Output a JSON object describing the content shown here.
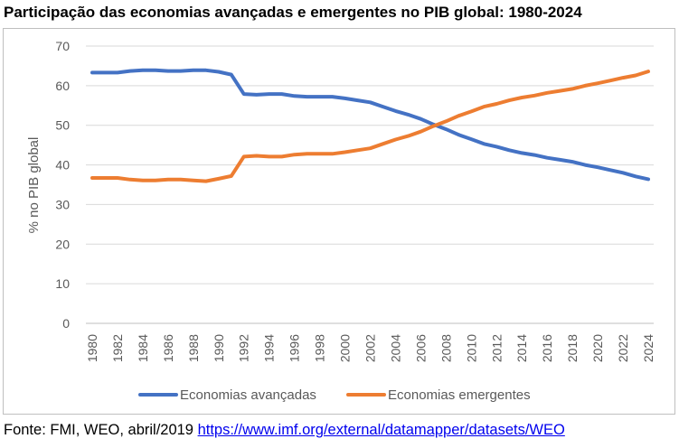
{
  "title": "Participação das economias avançadas e emergentes no PIB global: 1980-2024",
  "source": {
    "prefix": "Fonte: FMI, WEO, abril/2019 ",
    "link_text": "https://www.imf.org/external/datamapper/datasets/WEO"
  },
  "chart_data": {
    "type": "line",
    "title": "Participação das economias avançadas e emergentes no PIB global: 1980-2024",
    "xlabel": "",
    "ylabel": "% no PIB global",
    "ylim": [
      0,
      70
    ],
    "yticks": [
      "0",
      "10",
      "20",
      "30",
      "40",
      "50",
      "60",
      "70"
    ],
    "xticks": [
      "1980",
      "1982",
      "1984",
      "1986",
      "1988",
      "1990",
      "1992",
      "1994",
      "1996",
      "1998",
      "2000",
      "2002",
      "2004",
      "2006",
      "2008",
      "2010",
      "2012",
      "2014",
      "2016",
      "2018",
      "2020",
      "2022",
      "2024"
    ],
    "grid": "horizontal",
    "legend_position": "bottom",
    "x": [
      1980,
      1981,
      1982,
      1983,
      1984,
      1985,
      1986,
      1987,
      1988,
      1989,
      1990,
      1991,
      1992,
      1993,
      1994,
      1995,
      1996,
      1997,
      1998,
      1999,
      2000,
      2001,
      2002,
      2003,
      2004,
      2005,
      2006,
      2007,
      2008,
      2009,
      2010,
      2011,
      2012,
      2013,
      2014,
      2015,
      2016,
      2017,
      2018,
      2019,
      2020,
      2021,
      2022,
      2023,
      2024
    ],
    "series": [
      {
        "name": "Economias avançadas",
        "color": "#4472c4",
        "values": [
          63.3,
          63.3,
          63.3,
          63.7,
          63.9,
          63.9,
          63.7,
          63.7,
          63.9,
          63.9,
          63.5,
          62.8,
          57.9,
          57.7,
          57.9,
          57.9,
          57.4,
          57.2,
          57.2,
          57.2,
          56.8,
          56.3,
          55.8,
          54.7,
          53.6,
          52.7,
          51.6,
          50.2,
          49.0,
          47.6,
          46.5,
          45.3,
          44.6,
          43.7,
          43.0,
          42.5,
          41.8,
          41.3,
          40.8,
          40.0,
          39.4,
          38.7,
          38.0,
          37.1,
          36.4
        ],
        "linewidth": 4
      },
      {
        "name": "Economias emergentes",
        "color": "#ed7d31",
        "values": [
          36.7,
          36.7,
          36.7,
          36.3,
          36.1,
          36.1,
          36.3,
          36.3,
          36.1,
          35.9,
          36.5,
          37.2,
          42.1,
          42.3,
          42.1,
          42.1,
          42.6,
          42.8,
          42.8,
          42.8,
          43.2,
          43.7,
          44.2,
          45.3,
          46.4,
          47.3,
          48.4,
          49.8,
          51.0,
          52.4,
          53.5,
          54.7,
          55.4,
          56.3,
          57.0,
          57.5,
          58.2,
          58.7,
          59.2,
          60.0,
          60.6,
          61.3,
          62.0,
          62.6,
          63.6
        ],
        "linewidth": 4
      }
    ]
  }
}
